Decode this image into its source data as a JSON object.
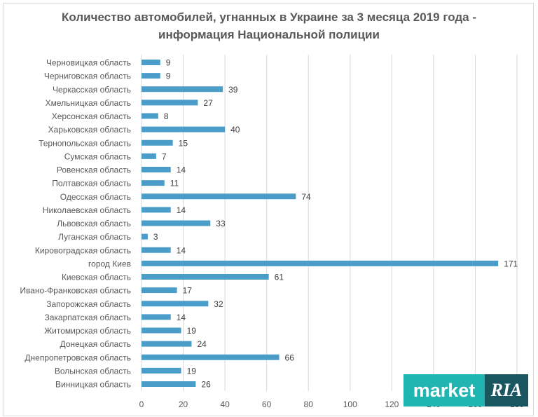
{
  "chart_data": {
    "type": "bar",
    "orientation": "horizontal",
    "title": "Количество автомобилей, угнанных в Украине за 3 месяца 2019 года - информация Национальной полиции",
    "title_lines": [
      "Количество автомобилей, угнанных в Украине за 3 месяца 2019 года -",
      "информация Национальной полиции"
    ],
    "categories": [
      "Черновицкая область",
      "Черниговская область",
      "Черкасская область",
      "Хмельницкая область",
      "Херсонская область",
      "Харьковская область",
      "Тернопольская область",
      "Сумская область",
      "Ровенская область",
      "Полтавская область",
      "Одесская область",
      "Николаевская область",
      "Львовская область",
      "Луганская область",
      "Кировоградская область",
      "город Киев",
      "Киевская область",
      "Ивано-Франковская область",
      "Запорожская область",
      "Закарпатская область",
      "Житомирская область",
      "Донецкая область",
      "Днепропетровская область",
      "Волынская область",
      "Винницкая область"
    ],
    "values": [
      9,
      9,
      39,
      27,
      8,
      40,
      15,
      7,
      14,
      11,
      74,
      14,
      33,
      3,
      14,
      171,
      61,
      17,
      32,
      14,
      19,
      24,
      66,
      19,
      26
    ],
    "xlim": [
      0,
      180
    ],
    "xticks": [
      "0",
      "20",
      "40",
      "60",
      "80",
      "100",
      "120",
      "140",
      "160",
      "180"
    ],
    "grid": true,
    "bar_color": "#4a9cc9",
    "data_labels": true
  },
  "logo": {
    "left_text": "market",
    "right_text": "RIA",
    "left_color": "#21b5b1",
    "right_color": "#1a5660"
  }
}
